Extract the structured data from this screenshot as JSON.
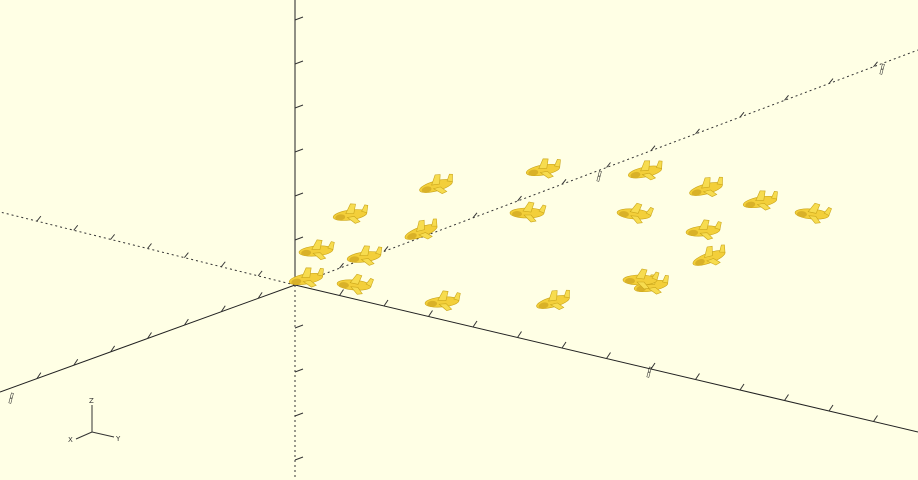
{
  "viewport": {
    "background_color": "#ffffe5",
    "model_color": "#f3cf3a",
    "axis_color": "#222222",
    "model_name": "airplane",
    "model_count": 20
  },
  "axis_gizmo": {
    "z_label": "Z",
    "y_label": "Y",
    "x_label": "X",
    "x_color": "#ff0000",
    "y_color": "#00aa00",
    "z_color": "#0000ff"
  }
}
